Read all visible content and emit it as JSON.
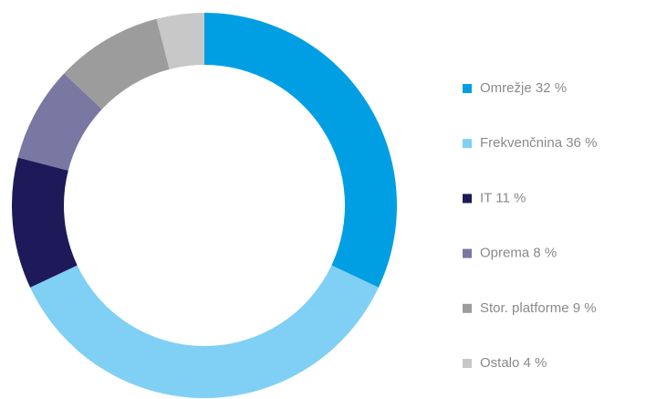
{
  "chart_data": {
    "type": "donut",
    "categories": [
      "Omrežje",
      "Frekvenčnina",
      "IT",
      "Oprema",
      "Stor. platforme",
      "Ostalo"
    ],
    "values": [
      32,
      36,
      11,
      8,
      9,
      4
    ],
    "value_labels": [
      "32 %",
      "36 %",
      "11 %",
      "8 %",
      "9 %",
      "4 %"
    ],
    "colors": [
      "#009fe3",
      "#80cff5",
      "#1e1a5a",
      "#7a77a3",
      "#9c9c9c",
      "#c8c8c8"
    ],
    "legend": "right"
  }
}
